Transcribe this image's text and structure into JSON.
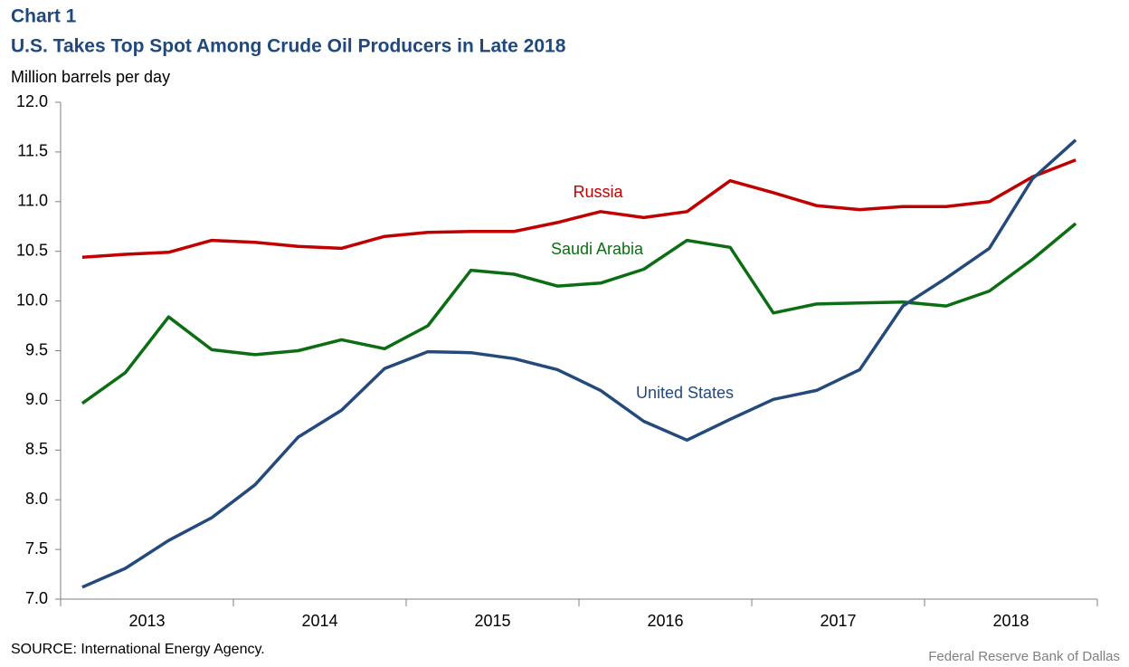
{
  "chart_data": {
    "type": "line",
    "label": "Chart 1",
    "title": "U.S. Takes Top Spot Among Crude Oil Producers in Late 2018",
    "y_axis_label": "Million barrels per day",
    "source": "SOURCE: International Energy Agency.",
    "credit": "Federal Reserve Bank of Dallas",
    "category_groups": [
      "2013",
      "2014",
      "2015",
      "2016",
      "2017",
      "2018"
    ],
    "categories": [
      null,
      null,
      null,
      null,
      null,
      null,
      null,
      null,
      null,
      null,
      null,
      null,
      null,
      null,
      null,
      null,
      null,
      null,
      null,
      null,
      null,
      null,
      null,
      null
    ],
    "ylim": [
      7,
      12
    ],
    "yticks": [
      {
        "value": 7,
        "label": "7.0"
      },
      7.5,
      {
        "value": 8,
        "label": "8.0"
      },
      8.5,
      {
        "value": 9,
        "label": "9.0"
      },
      9.5,
      {
        "value": 10,
        "label": "10.0"
      },
      10.5,
      {
        "value": 11,
        "label": "11.0"
      },
      11.5,
      {
        "value": 12,
        "label": "12.0"
      }
    ],
    "grid": false,
    "series": [
      {
        "name": "Russia",
        "color": "#c00000",
        "values": [
          10.44,
          10.47,
          10.49,
          10.61,
          10.59,
          10.55,
          10.53,
          10.65,
          10.69,
          10.7,
          10.7,
          10.79,
          10.9,
          10.84,
          10.9,
          11.21,
          11.09,
          10.96,
          10.92,
          10.95,
          10.95,
          11.0,
          11.25,
          11.42
        ]
      },
      {
        "name": "Saudi Arabia",
        "color": "#0b6e12",
        "values": [
          8.97,
          9.28,
          9.84,
          9.51,
          9.46,
          9.5,
          9.61,
          9.52,
          9.75,
          10.31,
          10.27,
          10.15,
          10.18,
          10.32,
          10.61,
          10.54,
          9.88,
          9.97,
          9.98,
          9.99,
          9.95,
          10.1,
          10.42,
          10.78
        ]
      },
      {
        "name": "United States",
        "color": "#244a7c",
        "values": [
          7.12,
          7.31,
          7.59,
          7.82,
          8.15,
          8.63,
          8.9,
          9.32,
          9.49,
          9.48,
          9.42,
          9.31,
          9.1,
          8.79,
          8.6,
          8.81,
          9.01,
          9.1,
          9.31,
          9.95,
          10.23,
          10.53,
          11.23,
          11.62
        ]
      }
    ]
  }
}
